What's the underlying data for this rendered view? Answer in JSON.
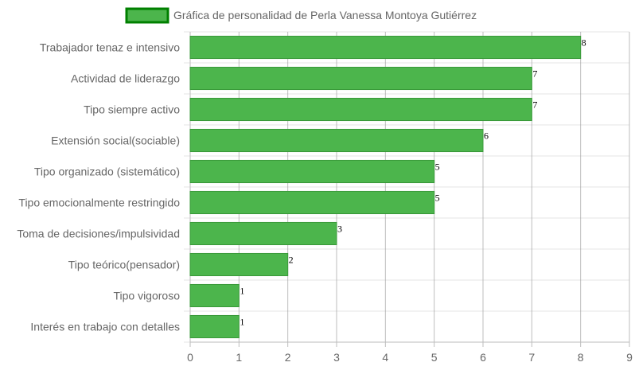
{
  "chart_data": {
    "type": "bar",
    "orientation": "horizontal",
    "legend": {
      "position": "top",
      "label": "Gráfica de personalidad de Perla Vanessa Montoya Gutiérrez"
    },
    "series": [
      {
        "name": "Gráfica de personalidad de Perla Vanessa Montoya Gutiérrez",
        "values": [
          8,
          7,
          7,
          6,
          5,
          5,
          3,
          2,
          1,
          1
        ]
      }
    ],
    "categories": [
      "Trabajador tenaz e intensivo",
      "Actividad de liderazgo",
      "Tipo siempre activo",
      "Extensión social(sociable)",
      "Tipo organizado (sistemático)",
      "Tipo emocionalmente restringido",
      "Toma de decisiones/impulsividad",
      "Tipo teórico(pensador)",
      "Tipo vigoroso",
      "Interés en trabajo con detalles"
    ],
    "xlim": [
      0,
      9
    ],
    "xticks": [
      "0",
      "1",
      "2",
      "3",
      "4",
      "5",
      "6",
      "7",
      "8",
      "9"
    ],
    "grid": true,
    "colors": {
      "bar_fill": "#4cb54c",
      "bar_border": "#3a9a3a",
      "legend_border": "#008000",
      "grid": "#e6e6e6",
      "grid_dark": "#888888",
      "text": "#666666"
    }
  }
}
